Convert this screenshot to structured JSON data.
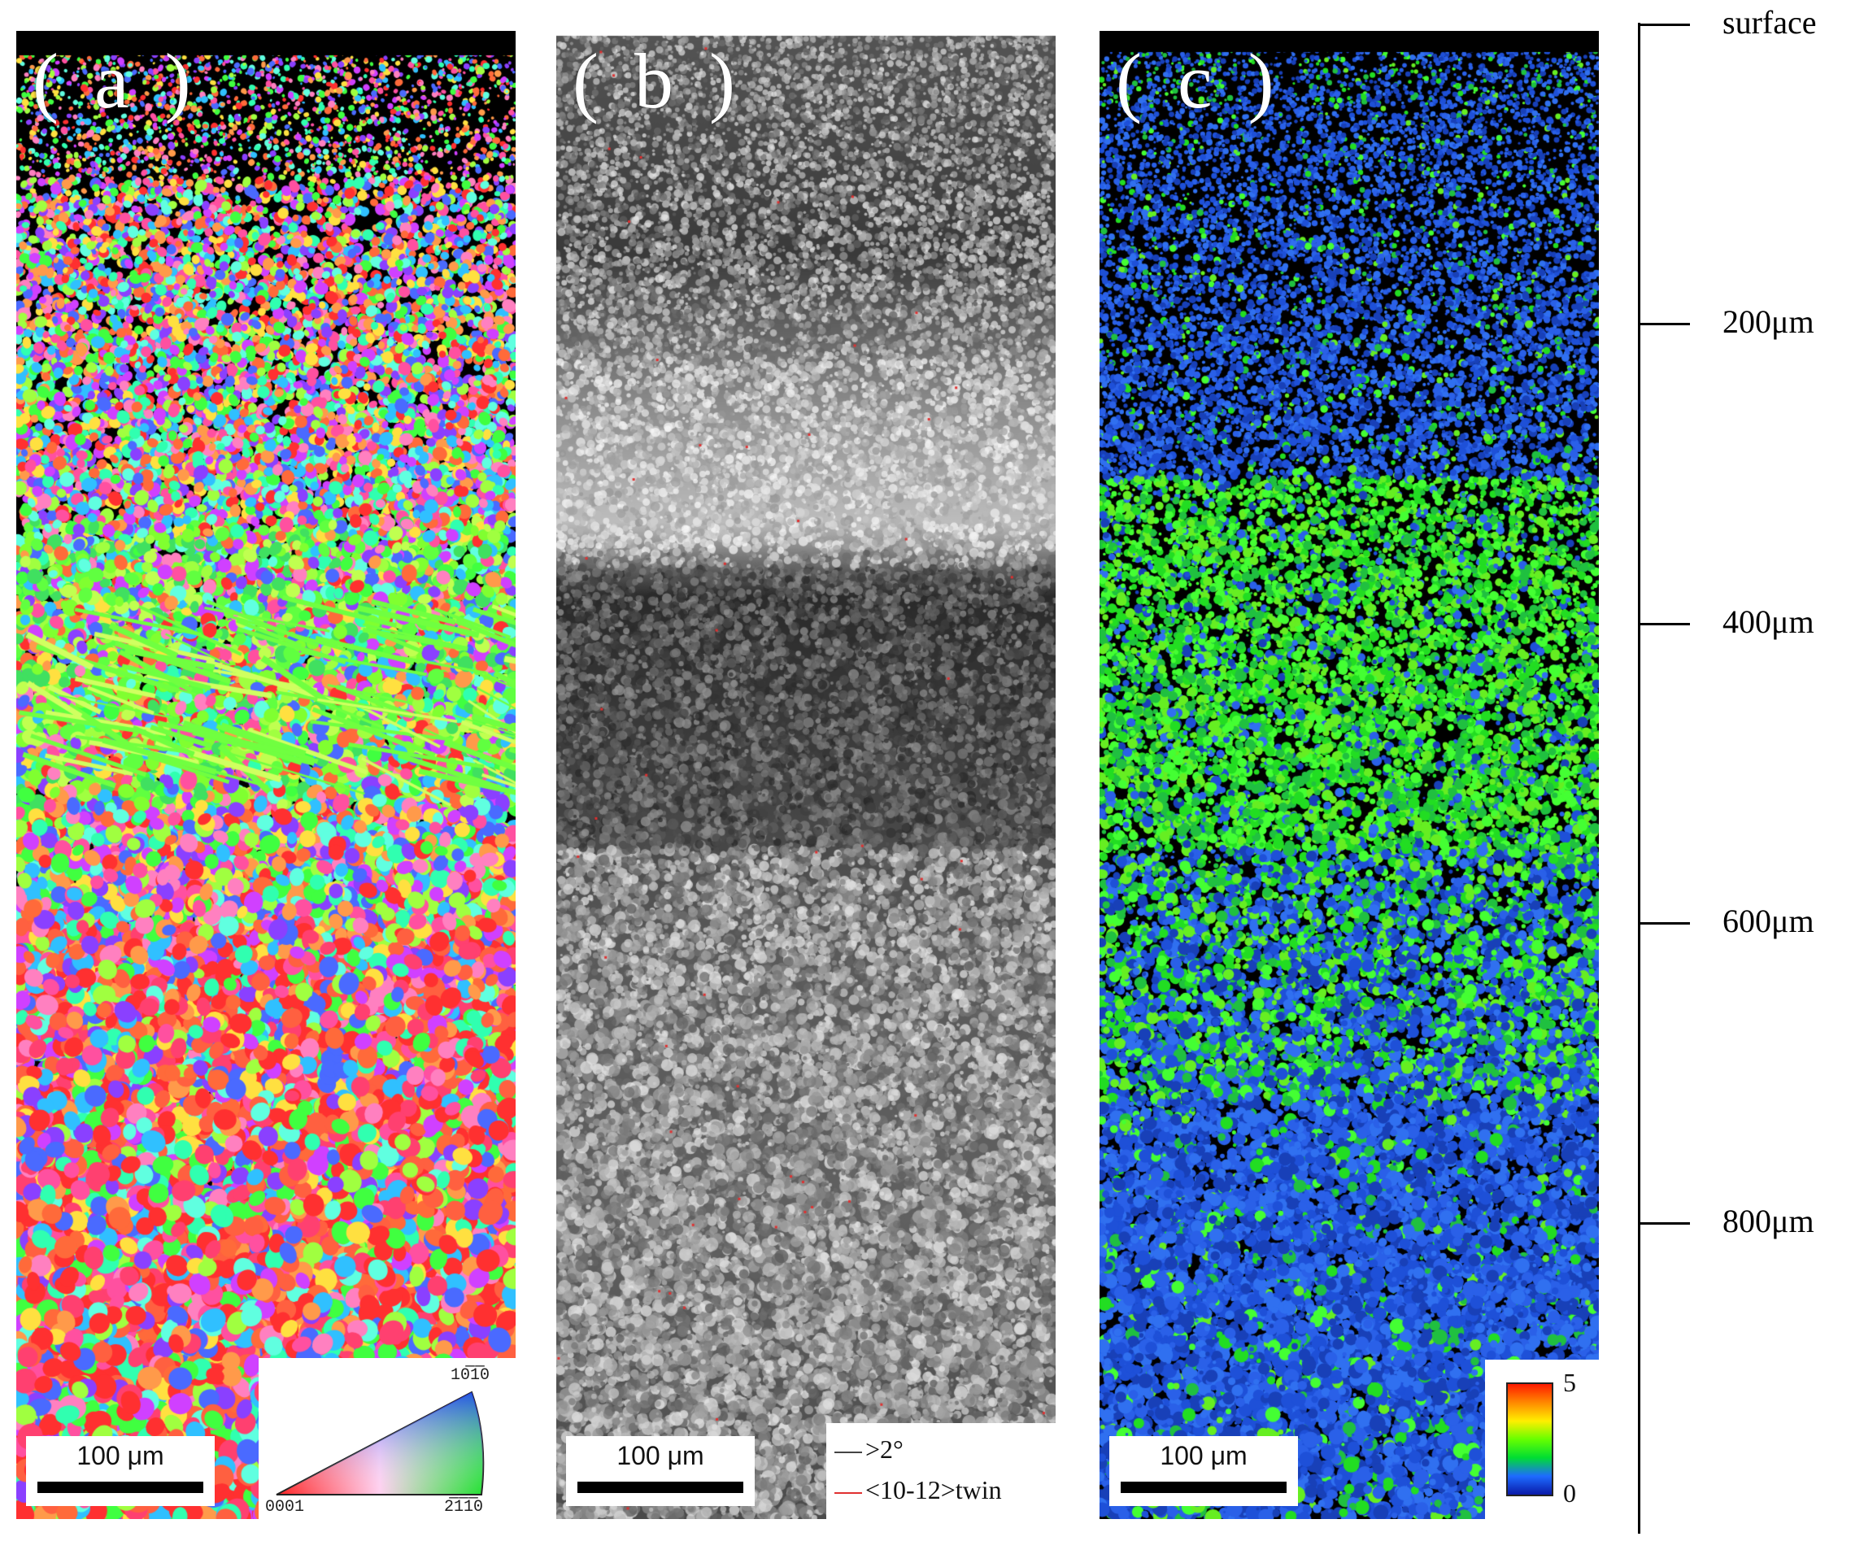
{
  "panels": [
    {
      "id": "a",
      "label": "( a )",
      "type": "ipf-map",
      "scalebar": "100  μm"
    },
    {
      "id": "b",
      "label": "( b )",
      "type": "band-contrast",
      "scalebar": "100  μm"
    },
    {
      "id": "c",
      "label": "( c )",
      "type": "kam-map",
      "scalebar": "100  μm"
    }
  ],
  "ipf_key": {
    "top": "10̅1̅0",
    "bottom_left": "0001",
    "bottom_right": "2̅1̅1̅0"
  },
  "boundaries_legend": [
    {
      "text": ">2°",
      "color": "#444444"
    },
    {
      "text": "<10-12>twin",
      "color": "#e03030"
    }
  ],
  "colorbar": {
    "max": "5",
    "min": "0"
  },
  "depth_axis": [
    {
      "label": "surface",
      "frac": 0.0
    },
    {
      "label": "200μm",
      "frac": 0.2222
    },
    {
      "label": "400μm",
      "frac": 0.4444
    },
    {
      "label": "600μm",
      "frac": 0.6667
    },
    {
      "label": "800μm",
      "frac": 0.8889
    }
  ],
  "colors": {
    "background": "#ffffff",
    "panel_label": "#ffffff",
    "kam_low": "#1e50d8",
    "kam_mid": "#22cc22"
  }
}
